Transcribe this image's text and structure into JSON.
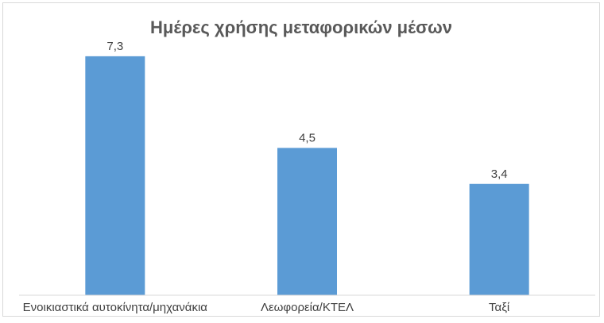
{
  "chart_data": {
    "type": "bar",
    "title": "Ημέρες χρήσης μεταφορικών μέσων",
    "categories": [
      "Ενοικιαστικά αυτοκίνητα/μηχανάκια",
      "Λεωφορεία/ΚΤΕΛ",
      "Ταξί"
    ],
    "values": [
      7.3,
      4.5,
      3.4
    ],
    "value_labels": [
      "7,3",
      "4,5",
      "3,4"
    ],
    "xlabel": "",
    "ylabel": "",
    "ylim": [
      0,
      8
    ],
    "grid": false,
    "legend": "none",
    "bar_color": "#5b9bd5"
  }
}
